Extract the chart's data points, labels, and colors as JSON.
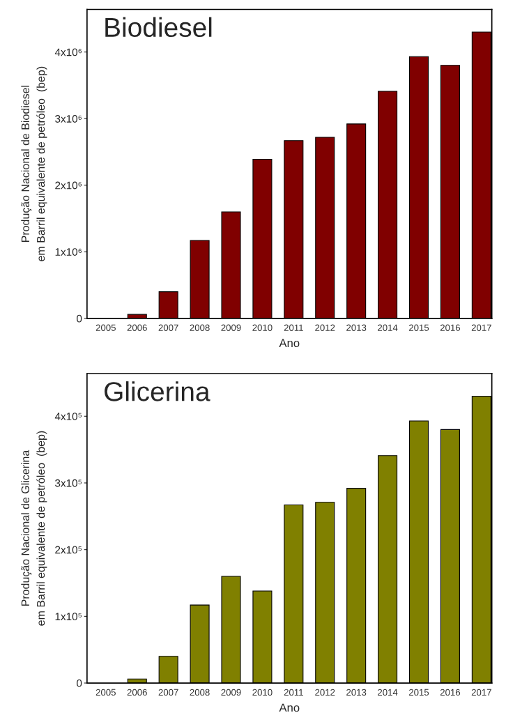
{
  "chart_data": [
    {
      "type": "bar",
      "title": "Biodiesel",
      "xlabel": "Ano",
      "ylabel": "Produção Nacional de Biodiesel\nem Barril equivalente de petróleo  (bep)",
      "categories": [
        "2005",
        "2006",
        "2007",
        "2008",
        "2009",
        "2010",
        "2011",
        "2012",
        "2013",
        "2014",
        "2015",
        "2016",
        "2017"
      ],
      "values": [
        null,
        60000,
        400000,
        1170000,
        1600000,
        2390000,
        2670000,
        2720000,
        2920000,
        3410000,
        3930000,
        3800000,
        4300000
      ],
      "color": "#800000",
      "ylim": [
        0,
        4640000
      ],
      "yticks": [
        0,
        {
          "value": 1000000,
          "label": "1x10⁶"
        },
        {
          "value": 2000000,
          "label": "2x10⁶"
        },
        {
          "value": 3000000,
          "label": "3x10⁶"
        },
        {
          "value": 4000000,
          "label": "4x10⁶"
        }
      ],
      "grid": false,
      "legend": false
    },
    {
      "type": "bar",
      "title": "Glicerina",
      "xlabel": "Ano",
      "ylabel": "Produção Nacional de Glicerina\nem Barril equivalente de petróleo  (bep)",
      "categories": [
        "2005",
        "2006",
        "2007",
        "2008",
        "2009",
        "2010",
        "2011",
        "2012",
        "2013",
        "2014",
        "2015",
        "2016",
        "2017"
      ],
      "values": [
        null,
        6000,
        40000,
        117000,
        160000,
        138000,
        267000,
        271000,
        292000,
        341000,
        393000,
        380000,
        430000
      ],
      "color": "#808000",
      "ylim": [
        0,
        464000
      ],
      "yticks": [
        0,
        {
          "value": 100000,
          "label": "1x10⁵"
        },
        {
          "value": 200000,
          "label": "2x10⁵"
        },
        {
          "value": 300000,
          "label": "3x10⁵"
        },
        {
          "value": 400000,
          "label": "4x10⁵"
        }
      ],
      "grid": false,
      "legend": false
    }
  ]
}
